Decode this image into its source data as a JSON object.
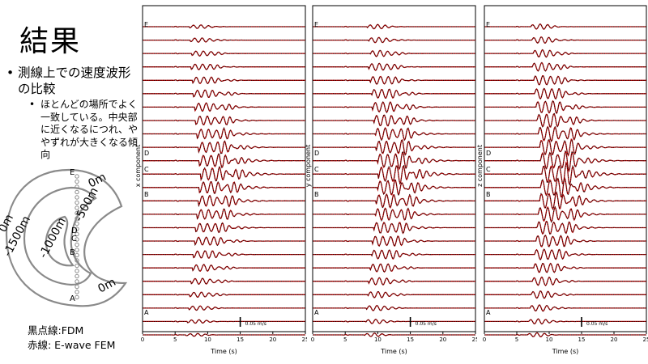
{
  "slide": {
    "title": "結果",
    "bullet_main": "測線上での速度波形の比較",
    "bullet_sub": "ほとんどの場所でよく一致している。中央部に近くなるにつれ、ややずれが大きくなる傾向",
    "legend": {
      "black": "黒点線:FDM",
      "red": "赤線: E-wave FEM"
    }
  },
  "map": {
    "contours": [
      "0m",
      "-500m",
      "-1000m",
      "-1500m",
      "0m",
      "0m"
    ],
    "points": [
      "E",
      "D",
      "C",
      "B",
      "A"
    ]
  },
  "colors": {
    "red": "#b00000",
    "black": "#111111",
    "contour": "#8a8a8a"
  },
  "chart_data": [
    {
      "type": "line",
      "title": "",
      "xlabel": "Time (s)",
      "ylabel": "x component",
      "xlim": [
        0,
        25
      ],
      "xticks": [
        "0",
        "5",
        "10",
        "15",
        "20",
        "25"
      ],
      "station_labels": [
        "E",
        "D",
        "C",
        "B",
        "A"
      ],
      "scale_label": "0.05 m/s",
      "series": [
        {
          "values": []
        },
        {
          "values": []
        }
      ]
    },
    {
      "type": "line",
      "title": "",
      "xlabel": "Time (s)",
      "ylabel": "y component",
      "xlim": [
        0,
        25
      ],
      "xticks": [
        "0",
        "5",
        "10",
        "15",
        "20",
        "25"
      ],
      "station_labels": [
        "E",
        "D",
        "C",
        "B",
        "A"
      ],
      "scale_label": "0.05 m/s",
      "series": [
        {
          "values": []
        },
        {
          "values": []
        }
      ]
    },
    {
      "type": "line",
      "title": "",
      "xlabel": "Time (s)",
      "ylabel": "z component",
      "xlim": [
        0,
        25
      ],
      "xticks": [
        "0",
        "5",
        "10",
        "15",
        "20",
        "25"
      ],
      "station_labels": [
        "E",
        "D",
        "C",
        "B",
        "A"
      ],
      "scale_label": "0.05 m/s",
      "series": [
        {
          "values": []
        },
        {
          "values": []
        }
      ]
    }
  ]
}
